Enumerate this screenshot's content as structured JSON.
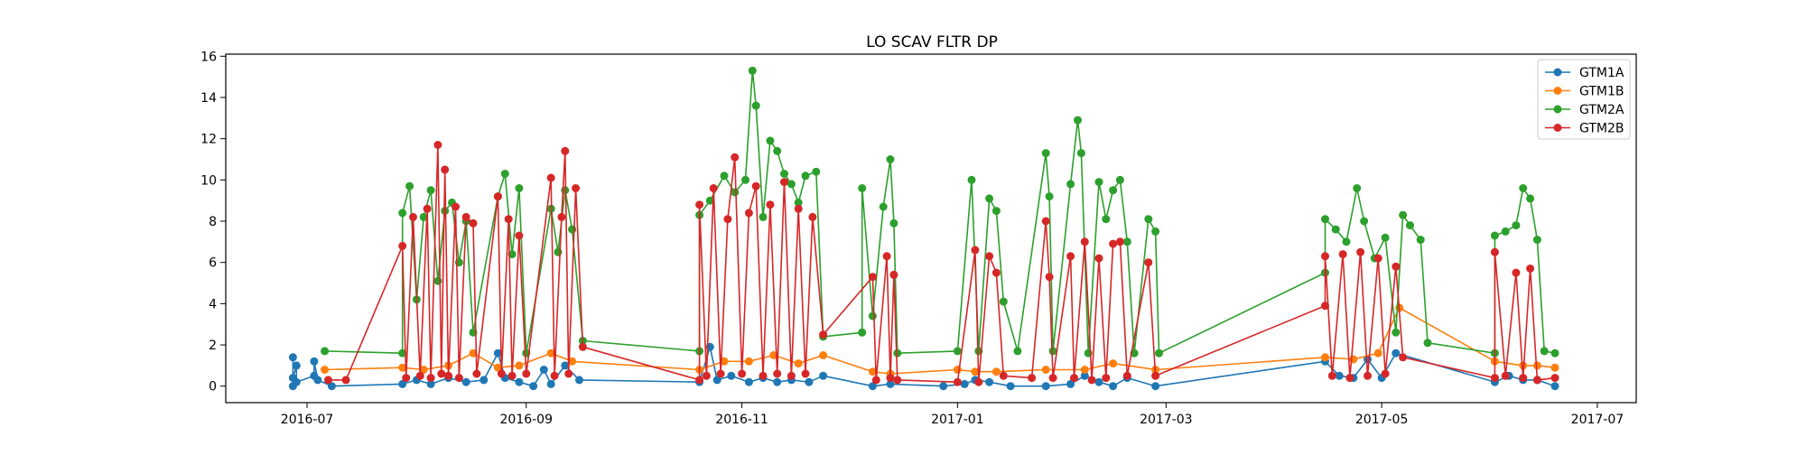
{
  "chart_data": {
    "type": "line",
    "title": "LO SCAV FLTR DP",
    "xlabel": "",
    "ylabel": "",
    "x_type": "date",
    "xlim": [
      "2016-06-08",
      "2017-07-12"
    ],
    "ylim": [
      -0.8,
      16.1
    ],
    "x_ticks": [
      {
        "date": "2016-07-01",
        "label": "2016-07"
      },
      {
        "date": "2016-09-01",
        "label": "2016-09"
      },
      {
        "date": "2016-11-01",
        "label": "2016-11"
      },
      {
        "date": "2017-01-01",
        "label": "2017-01"
      },
      {
        "date": "2017-03-01",
        "label": "2017-03"
      },
      {
        "date": "2017-05-01",
        "label": "2017-05"
      },
      {
        "date": "2017-07-01",
        "label": "2017-07"
      }
    ],
    "y_ticks": [
      0,
      2,
      4,
      6,
      8,
      10,
      12,
      14,
      16
    ],
    "grid": false,
    "legend_position": "top-right",
    "series": [
      {
        "name": "GTM1A",
        "color": "#1f77b4",
        "points": [
          [
            "2016-06-27",
            0.0
          ],
          [
            "2016-06-27",
            1.4
          ],
          [
            "2016-06-27",
            0.4
          ],
          [
            "2016-06-28",
            1.0
          ],
          [
            "2016-06-28",
            0.2
          ],
          [
            "2016-07-03",
            0.5
          ],
          [
            "2016-07-03",
            1.2
          ],
          [
            "2016-07-04",
            0.3
          ],
          [
            "2016-07-08",
            0.0
          ],
          [
            "2016-07-28",
            0.1
          ],
          [
            "2016-08-01",
            0.3
          ],
          [
            "2016-08-05",
            0.1
          ],
          [
            "2016-08-10",
            0.4
          ],
          [
            "2016-08-15",
            0.2
          ],
          [
            "2016-08-20",
            0.3
          ],
          [
            "2016-08-24",
            1.6
          ],
          [
            "2016-08-26",
            0.4
          ],
          [
            "2016-08-30",
            0.2
          ],
          [
            "2016-09-03",
            0.0
          ],
          [
            "2016-09-06",
            0.8
          ],
          [
            "2016-09-08",
            0.1
          ],
          [
            "2016-09-12",
            1.0
          ],
          [
            "2016-09-16",
            0.3
          ],
          [
            "2016-10-20",
            0.2
          ],
          [
            "2016-10-23",
            1.9
          ],
          [
            "2016-10-25",
            0.3
          ],
          [
            "2016-10-29",
            0.5
          ],
          [
            "2016-11-03",
            0.2
          ],
          [
            "2016-11-07",
            0.4
          ],
          [
            "2016-11-11",
            0.2
          ],
          [
            "2016-11-15",
            0.3
          ],
          [
            "2016-11-20",
            0.2
          ],
          [
            "2016-11-24",
            0.5
          ],
          [
            "2016-12-08",
            0.0
          ],
          [
            "2016-12-13",
            0.1
          ],
          [
            "2016-12-28",
            0.0
          ],
          [
            "2017-01-03",
            0.1
          ],
          [
            "2017-01-06",
            0.3
          ],
          [
            "2017-01-10",
            0.2
          ],
          [
            "2017-01-16",
            0.0
          ],
          [
            "2017-01-26",
            0.0
          ],
          [
            "2017-02-02",
            0.1
          ],
          [
            "2017-02-06",
            0.5
          ],
          [
            "2017-02-10",
            0.2
          ],
          [
            "2017-02-14",
            0.0
          ],
          [
            "2017-02-18",
            0.4
          ],
          [
            "2017-02-26",
            0.0
          ],
          [
            "2017-04-15",
            1.2
          ],
          [
            "2017-04-19",
            0.5
          ],
          [
            "2017-04-23",
            0.4
          ],
          [
            "2017-04-27",
            1.3
          ],
          [
            "2017-05-01",
            0.4
          ],
          [
            "2017-05-05",
            1.6
          ],
          [
            "2017-06-02",
            0.2
          ],
          [
            "2017-06-06",
            0.5
          ],
          [
            "2017-06-10",
            0.3
          ],
          [
            "2017-06-14",
            0.3
          ],
          [
            "2017-06-19",
            0.0
          ]
        ]
      },
      {
        "name": "GTM1B",
        "color": "#ff7f0e",
        "points": [
          [
            "2016-07-06",
            0.8
          ],
          [
            "2016-07-28",
            0.9
          ],
          [
            "2016-08-03",
            0.8
          ],
          [
            "2016-08-10",
            1.0
          ],
          [
            "2016-08-17",
            1.6
          ],
          [
            "2016-08-24",
            0.9
          ],
          [
            "2016-08-30",
            1.0
          ],
          [
            "2016-09-08",
            1.6
          ],
          [
            "2016-09-14",
            1.2
          ],
          [
            "2016-10-20",
            0.8
          ],
          [
            "2016-10-27",
            1.2
          ],
          [
            "2016-11-03",
            1.2
          ],
          [
            "2016-11-10",
            1.5
          ],
          [
            "2016-11-17",
            1.1
          ],
          [
            "2016-11-24",
            1.5
          ],
          [
            "2016-12-08",
            0.7
          ],
          [
            "2016-12-13",
            0.6
          ],
          [
            "2017-01-01",
            0.8
          ],
          [
            "2017-01-06",
            0.7
          ],
          [
            "2017-01-12",
            0.7
          ],
          [
            "2017-01-26",
            0.8
          ],
          [
            "2017-02-06",
            0.8
          ],
          [
            "2017-02-14",
            1.1
          ],
          [
            "2017-02-26",
            0.8
          ],
          [
            "2017-04-15",
            1.4
          ],
          [
            "2017-04-23",
            1.3
          ],
          [
            "2017-04-30",
            1.6
          ],
          [
            "2017-05-06",
            3.8
          ],
          [
            "2017-06-02",
            1.2
          ],
          [
            "2017-06-10",
            1.0
          ],
          [
            "2017-06-14",
            1.0
          ],
          [
            "2017-06-19",
            0.9
          ]
        ]
      },
      {
        "name": "GTM2A",
        "color": "#2ca02c",
        "points": [
          [
            "2016-07-06",
            1.7
          ],
          [
            "2016-07-28",
            1.6
          ],
          [
            "2016-07-28",
            8.4
          ],
          [
            "2016-07-30",
            9.7
          ],
          [
            "2016-08-01",
            4.2
          ],
          [
            "2016-08-03",
            8.2
          ],
          [
            "2016-08-05",
            9.5
          ],
          [
            "2016-08-07",
            5.1
          ],
          [
            "2016-08-09",
            8.5
          ],
          [
            "2016-08-11",
            8.9
          ],
          [
            "2016-08-13",
            6.0
          ],
          [
            "2016-08-15",
            8.0
          ],
          [
            "2016-08-17",
            2.6
          ],
          [
            "2016-08-24",
            9.2
          ],
          [
            "2016-08-26",
            10.3
          ],
          [
            "2016-08-28",
            6.4
          ],
          [
            "2016-08-30",
            9.6
          ],
          [
            "2016-09-01",
            1.6
          ],
          [
            "2016-09-08",
            8.6
          ],
          [
            "2016-09-10",
            6.5
          ],
          [
            "2016-09-12",
            9.5
          ],
          [
            "2016-09-14",
            7.6
          ],
          [
            "2016-09-17",
            2.2
          ],
          [
            "2016-10-20",
            1.7
          ],
          [
            "2016-10-20",
            8.3
          ],
          [
            "2016-10-23",
            9.0
          ],
          [
            "2016-10-27",
            10.2
          ],
          [
            "2016-10-30",
            9.4
          ],
          [
            "2016-11-02",
            10.0
          ],
          [
            "2016-11-04",
            15.3
          ],
          [
            "2016-11-05",
            13.6
          ],
          [
            "2016-11-07",
            8.2
          ],
          [
            "2016-11-09",
            11.9
          ],
          [
            "2016-11-11",
            11.4
          ],
          [
            "2016-11-13",
            10.3
          ],
          [
            "2016-11-15",
            9.8
          ],
          [
            "2016-11-17",
            8.9
          ],
          [
            "2016-11-19",
            10.2
          ],
          [
            "2016-11-22",
            10.4
          ],
          [
            "2016-11-24",
            2.4
          ],
          [
            "2016-12-05",
            2.6
          ],
          [
            "2016-12-05",
            9.6
          ],
          [
            "2016-12-08",
            3.4
          ],
          [
            "2016-12-11",
            8.7
          ],
          [
            "2016-12-13",
            11.0
          ],
          [
            "2016-12-14",
            7.9
          ],
          [
            "2016-12-15",
            1.6
          ],
          [
            "2017-01-01",
            1.7
          ],
          [
            "2017-01-05",
            10.0
          ],
          [
            "2017-01-07",
            1.7
          ],
          [
            "2017-01-10",
            9.1
          ],
          [
            "2017-01-12",
            8.5
          ],
          [
            "2017-01-14",
            4.1
          ],
          [
            "2017-01-18",
            1.7
          ],
          [
            "2017-01-26",
            11.3
          ],
          [
            "2017-01-27",
            9.2
          ],
          [
            "2017-01-28",
            1.7
          ],
          [
            "2017-02-02",
            9.8
          ],
          [
            "2017-02-04",
            12.9
          ],
          [
            "2017-02-05",
            11.3
          ],
          [
            "2017-02-07",
            1.6
          ],
          [
            "2017-02-10",
            9.9
          ],
          [
            "2017-02-12",
            8.1
          ],
          [
            "2017-02-14",
            9.5
          ],
          [
            "2017-02-16",
            10.0
          ],
          [
            "2017-02-18",
            7.0
          ],
          [
            "2017-02-20",
            1.6
          ],
          [
            "2017-02-24",
            8.1
          ],
          [
            "2017-02-26",
            7.5
          ],
          [
            "2017-02-27",
            1.6
          ],
          [
            "2017-04-15",
            5.5
          ],
          [
            "2017-04-15",
            8.1
          ],
          [
            "2017-04-18",
            7.6
          ],
          [
            "2017-04-21",
            7.0
          ],
          [
            "2017-04-24",
            9.6
          ],
          [
            "2017-04-26",
            8.0
          ],
          [
            "2017-04-29",
            6.2
          ],
          [
            "2017-05-02",
            7.2
          ],
          [
            "2017-05-05",
            2.6
          ],
          [
            "2017-05-07",
            8.3
          ],
          [
            "2017-05-09",
            7.8
          ],
          [
            "2017-05-12",
            7.1
          ],
          [
            "2017-05-14",
            2.1
          ],
          [
            "2017-06-02",
            1.6
          ],
          [
            "2017-06-02",
            7.3
          ],
          [
            "2017-06-05",
            7.5
          ],
          [
            "2017-06-08",
            7.8
          ],
          [
            "2017-06-10",
            9.6
          ],
          [
            "2017-06-12",
            9.1
          ],
          [
            "2017-06-14",
            7.1
          ],
          [
            "2017-06-16",
            1.7
          ],
          [
            "2017-06-19",
            1.6
          ]
        ]
      },
      {
        "name": "GTM2B",
        "color": "#d62728",
        "points": [
          [
            "2016-07-07",
            0.3
          ],
          [
            "2016-07-12",
            0.3
          ],
          [
            "2016-07-28",
            6.8
          ],
          [
            "2016-07-29",
            0.4
          ],
          [
            "2016-07-31",
            8.2
          ],
          [
            "2016-08-02",
            0.5
          ],
          [
            "2016-08-04",
            8.6
          ],
          [
            "2016-08-05",
            0.4
          ],
          [
            "2016-08-07",
            11.7
          ],
          [
            "2016-08-08",
            0.6
          ],
          [
            "2016-08-09",
            10.5
          ],
          [
            "2016-08-10",
            0.5
          ],
          [
            "2016-08-12",
            8.7
          ],
          [
            "2016-08-13",
            0.4
          ],
          [
            "2016-08-15",
            8.2
          ],
          [
            "2016-08-17",
            7.9
          ],
          [
            "2016-08-18",
            0.6
          ],
          [
            "2016-08-24",
            9.2
          ],
          [
            "2016-08-25",
            0.6
          ],
          [
            "2016-08-27",
            8.1
          ],
          [
            "2016-08-28",
            0.5
          ],
          [
            "2016-08-30",
            7.3
          ],
          [
            "2016-09-01",
            0.6
          ],
          [
            "2016-09-08",
            10.1
          ],
          [
            "2016-09-09",
            0.5
          ],
          [
            "2016-09-11",
            8.2
          ],
          [
            "2016-09-12",
            11.4
          ],
          [
            "2016-09-13",
            0.6
          ],
          [
            "2016-09-15",
            9.6
          ],
          [
            "2016-09-17",
            1.9
          ],
          [
            "2016-10-20",
            0.3
          ],
          [
            "2016-10-20",
            8.8
          ],
          [
            "2016-10-22",
            0.5
          ],
          [
            "2016-10-24",
            9.6
          ],
          [
            "2016-10-26",
            0.6
          ],
          [
            "2016-10-28",
            8.1
          ],
          [
            "2016-10-30",
            11.1
          ],
          [
            "2016-11-01",
            0.6
          ],
          [
            "2016-11-03",
            8.4
          ],
          [
            "2016-11-05",
            9.7
          ],
          [
            "2016-11-07",
            0.5
          ],
          [
            "2016-11-09",
            8.8
          ],
          [
            "2016-11-11",
            0.6
          ],
          [
            "2016-11-13",
            9.9
          ],
          [
            "2016-11-15",
            0.5
          ],
          [
            "2016-11-17",
            8.6
          ],
          [
            "2016-11-19",
            0.6
          ],
          [
            "2016-11-21",
            8.2
          ],
          [
            "2016-11-24",
            2.5
          ],
          [
            "2016-12-08",
            5.3
          ],
          [
            "2016-12-09",
            0.3
          ],
          [
            "2016-12-12",
            6.3
          ],
          [
            "2016-12-13",
            0.4
          ],
          [
            "2016-12-14",
            5.4
          ],
          [
            "2016-12-15",
            0.3
          ],
          [
            "2017-01-01",
            0.2
          ],
          [
            "2017-01-06",
            6.6
          ],
          [
            "2017-01-07",
            0.2
          ],
          [
            "2017-01-10",
            6.3
          ],
          [
            "2017-01-12",
            5.5
          ],
          [
            "2017-01-14",
            0.5
          ],
          [
            "2017-01-22",
            0.4
          ],
          [
            "2017-01-26",
            8.0
          ],
          [
            "2017-01-27",
            5.3
          ],
          [
            "2017-01-28",
            0.4
          ],
          [
            "2017-02-02",
            6.3
          ],
          [
            "2017-02-03",
            0.4
          ],
          [
            "2017-02-06",
            7.0
          ],
          [
            "2017-02-08",
            0.3
          ],
          [
            "2017-02-10",
            6.2
          ],
          [
            "2017-02-12",
            0.4
          ],
          [
            "2017-02-14",
            6.9
          ],
          [
            "2017-02-16",
            7.0
          ],
          [
            "2017-02-18",
            0.5
          ],
          [
            "2017-02-24",
            6.0
          ],
          [
            "2017-02-26",
            0.5
          ],
          [
            "2017-04-15",
            3.9
          ],
          [
            "2017-04-15",
            6.3
          ],
          [
            "2017-04-17",
            0.5
          ],
          [
            "2017-04-20",
            6.4
          ],
          [
            "2017-04-22",
            0.4
          ],
          [
            "2017-04-25",
            6.5
          ],
          [
            "2017-04-27",
            0.5
          ],
          [
            "2017-04-30",
            6.2
          ],
          [
            "2017-05-02",
            0.6
          ],
          [
            "2017-05-05",
            5.8
          ],
          [
            "2017-05-07",
            1.4
          ],
          [
            "2017-06-02",
            0.4
          ],
          [
            "2017-06-02",
            6.5
          ],
          [
            "2017-06-05",
            0.5
          ],
          [
            "2017-06-08",
            5.5
          ],
          [
            "2017-06-10",
            0.4
          ],
          [
            "2017-06-12",
            5.7
          ],
          [
            "2017-06-14",
            0.3
          ],
          [
            "2017-06-19",
            0.4
          ]
        ]
      }
    ]
  }
}
